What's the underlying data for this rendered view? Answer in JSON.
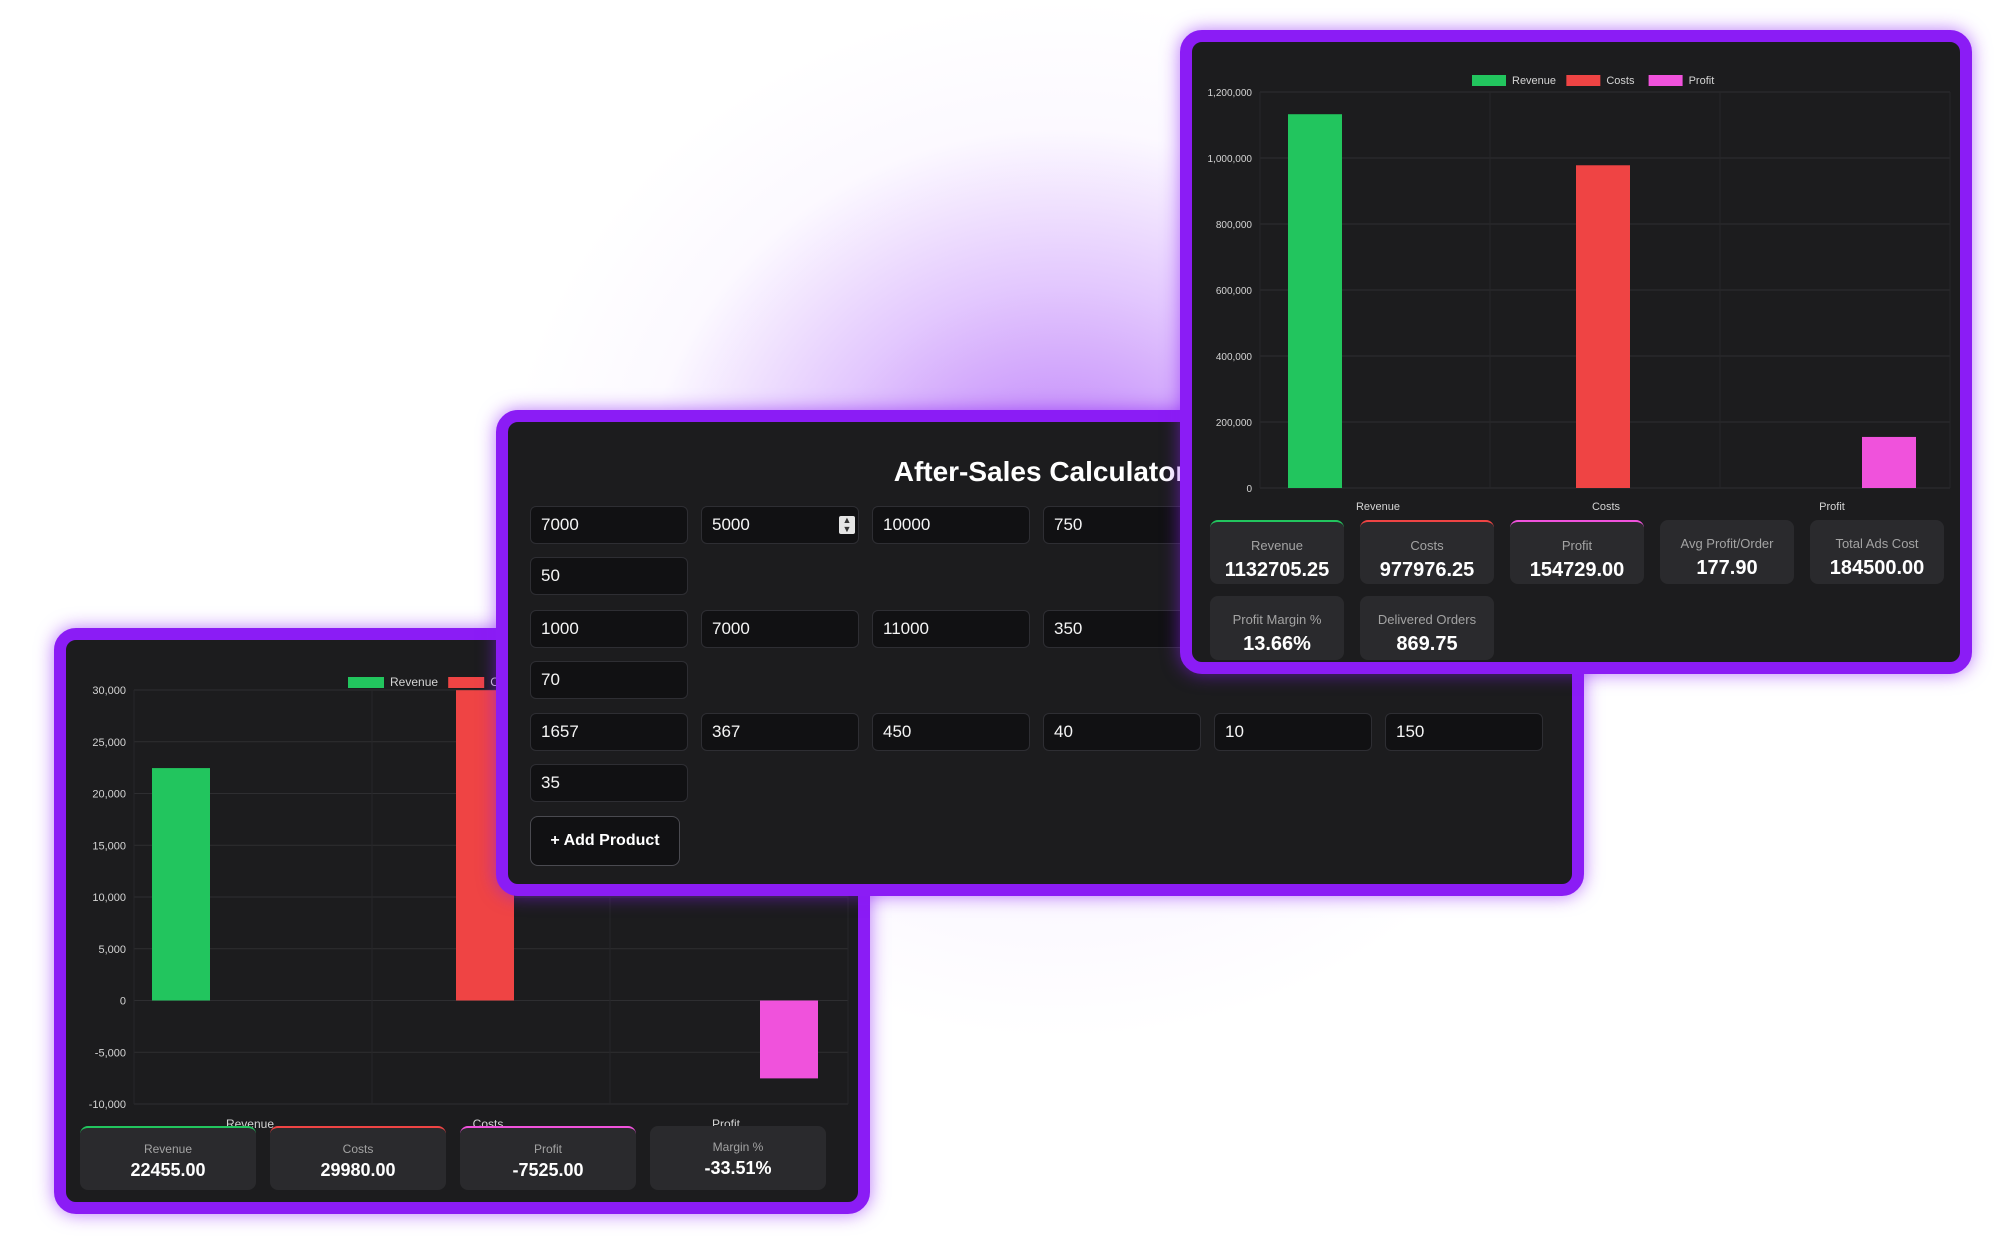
{
  "calculator": {
    "title": "After-Sales Calculator",
    "add_button_label": "+ Add Product",
    "rows": [
      {
        "fields": [
          "7000",
          "5000",
          "10000",
          "750"
        ],
        "extra": "50"
      },
      {
        "fields": [
          "1000",
          "7000",
          "11000",
          "350"
        ],
        "extra": "70"
      },
      {
        "fields": [
          "1657",
          "367",
          "450",
          "40",
          "10",
          "150"
        ],
        "extra": "35"
      }
    ]
  },
  "left_panel": {
    "stats": [
      {
        "label": "Revenue",
        "value": "22455.00"
      },
      {
        "label": "Costs",
        "value": "29980.00"
      },
      {
        "label": "Profit",
        "value": "-7525.00"
      },
      {
        "label": "Margin %",
        "value": "-33.51%"
      }
    ]
  },
  "right_panel": {
    "stats": [
      {
        "label": "Revenue",
        "value": "1132705.25"
      },
      {
        "label": "Costs",
        "value": "977976.25"
      },
      {
        "label": "Profit",
        "value": "154729.00"
      },
      {
        "label": "Avg Profit/Order",
        "value": "177.90"
      },
      {
        "label": "Total Ads Cost",
        "value": "184500.00"
      },
      {
        "label": "Profit Margin %",
        "value": "13.66%"
      },
      {
        "label": "Delivered Orders",
        "value": "869.75"
      }
    ]
  },
  "chart_data": [
    {
      "type": "bar",
      "categories": [
        "Revenue",
        "Costs",
        "Profit"
      ],
      "values": [
        22455,
        29980,
        -7525
      ],
      "legend": [
        "Revenue",
        "Costs"
      ],
      "legend_position": "top",
      "yticks": [
        "30,000",
        "25,000",
        "20,000",
        "15,000",
        "10,000",
        "5,000",
        "0",
        "-5,000",
        "-10,000"
      ],
      "ylim": [
        -10000,
        30000
      ],
      "colors": [
        "#22c55e",
        "#ef4444",
        "#f052dc"
      ],
      "grid": true
    },
    {
      "type": "bar",
      "categories": [
        "Revenue",
        "Costs",
        "Profit"
      ],
      "values": [
        1132705.25,
        977976.25,
        154729
      ],
      "legend": [
        "Revenue",
        "Costs",
        "Profit"
      ],
      "legend_position": "top",
      "yticks": [
        "1,200,000",
        "1,000,000",
        "800,000",
        "600,000",
        "400,000",
        "200,000",
        "0"
      ],
      "ylim": [
        0,
        1200000
      ],
      "colors": [
        "#22c55e",
        "#ef4444",
        "#f052dc"
      ],
      "grid": true
    }
  ]
}
